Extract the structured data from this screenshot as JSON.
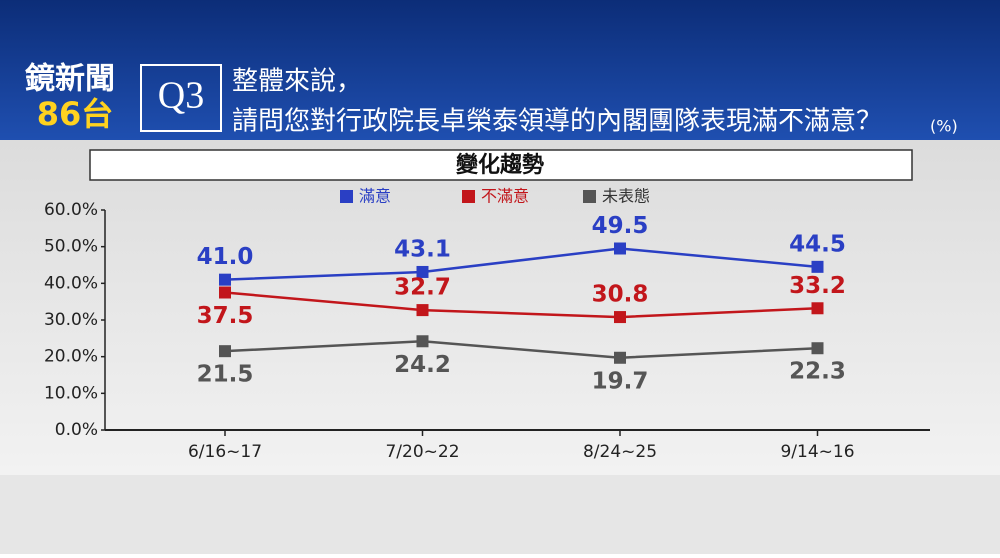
{
  "header": {
    "channel": "鏡新聞",
    "channel_number": "86台",
    "question_no": "Q3",
    "question_line1": "整體來說，",
    "question_line2": "請問您對行政院長卓榮泰領導的內閣團隊表現滿不滿意？",
    "unit": "(%)"
  },
  "chart_data": {
    "type": "line",
    "title": "變化趨勢",
    "categories": [
      "6/16~17",
      "7/20~22",
      "8/24~25",
      "9/14~16"
    ],
    "series": [
      {
        "name": "滿意",
        "color": "#2a3fc4",
        "values": [
          41.0,
          43.1,
          49.5,
          44.5
        ],
        "value_labels": [
          "41.0",
          "43.1",
          "49.5",
          "44.5"
        ]
      },
      {
        "name": "不滿意",
        "color": "#c2161b",
        "values": [
          37.5,
          32.7,
          30.8,
          33.2
        ],
        "value_labels": [
          "37.5",
          "32.7",
          "30.8",
          "33.2"
        ]
      },
      {
        "name": "未表態",
        "color": "#555555",
        "values": [
          21.5,
          24.2,
          19.7,
          22.3
        ],
        "value_labels": [
          "21.5",
          "24.2",
          "19.7",
          "22.3"
        ]
      }
    ],
    "ylim": [
      0,
      60
    ],
    "yticks": [
      {
        "value": 0,
        "label": "0.0%"
      },
      {
        "value": 10,
        "label": "10.0%"
      },
      {
        "value": 20,
        "label": "20.0%"
      },
      {
        "value": 30,
        "label": "30.0%"
      },
      {
        "value": 40,
        "label": "40.0%"
      },
      {
        "value": 50,
        "label": "50.0%"
      },
      {
        "value": 60,
        "label": "60.0%"
      }
    ],
    "legend": "top"
  }
}
